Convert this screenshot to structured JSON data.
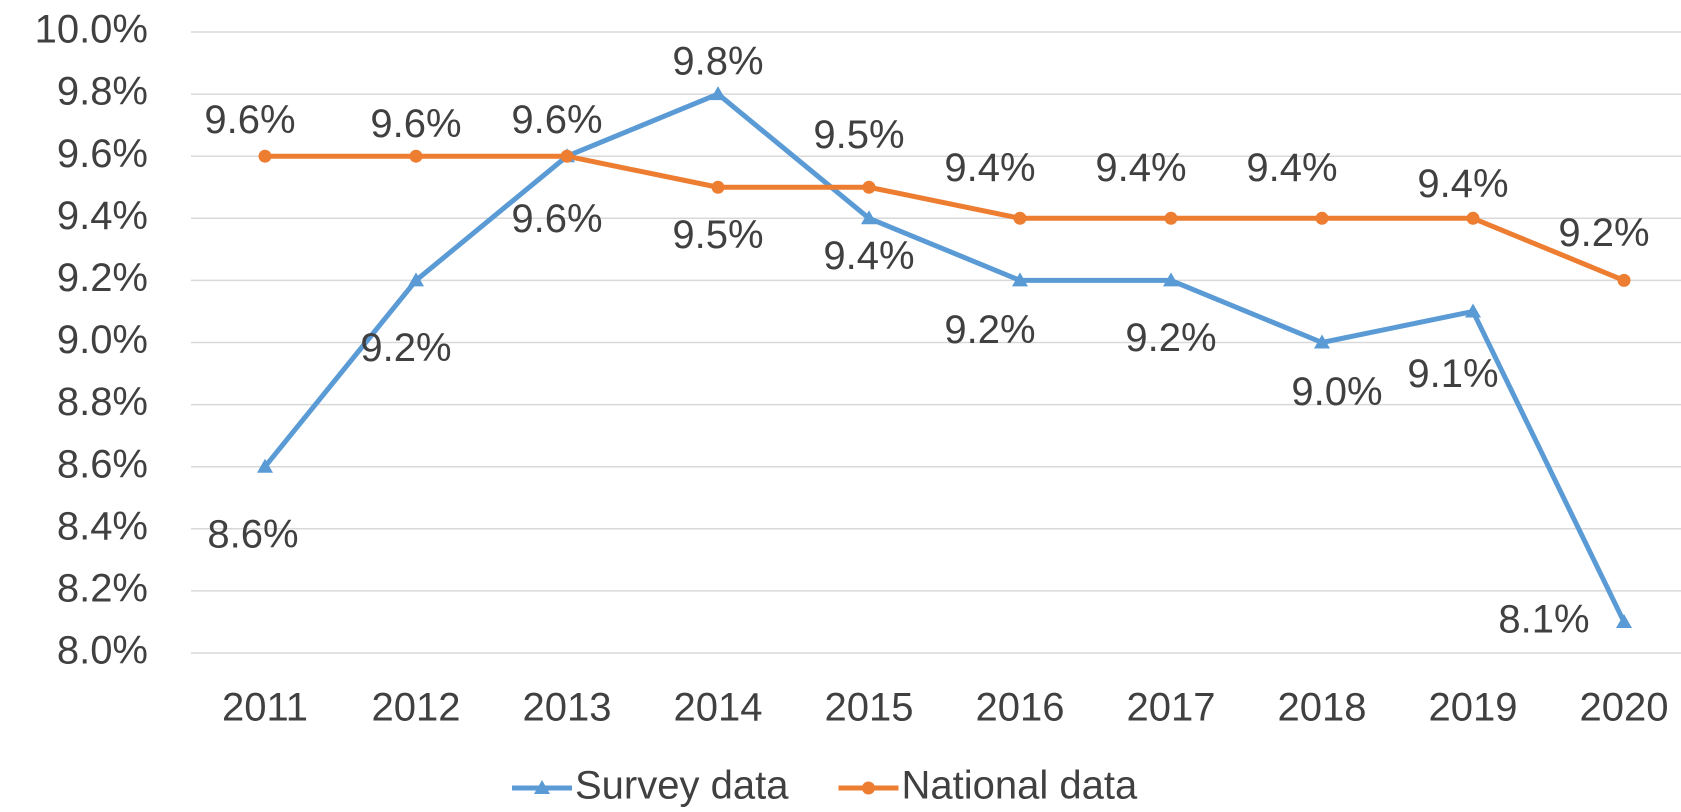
{
  "chart_data": {
    "type": "line",
    "categories": [
      "2011",
      "2012",
      "2013",
      "2014",
      "2015",
      "2016",
      "2017",
      "2018",
      "2019",
      "2020"
    ],
    "series": [
      {
        "name": "Survey data",
        "color": "#5b9bd5",
        "marker": "triangle",
        "values": [
          8.6,
          9.2,
          9.6,
          9.8,
          9.4,
          9.2,
          9.2,
          9.0,
          9.1,
          8.1
        ],
        "value_labels": [
          "8.6%",
          "9.2%",
          "9.6%",
          "9.8%",
          "9.4%",
          "9.2%",
          "9.2%",
          "9.0%",
          "9.1%",
          "8.1%"
        ]
      },
      {
        "name": "National data",
        "color": "#ed7d31",
        "marker": "circle",
        "values": [
          9.6,
          9.6,
          9.6,
          9.5,
          9.5,
          9.4,
          9.4,
          9.4,
          9.4,
          9.2
        ],
        "value_labels": [
          "9.6%",
          "9.6%",
          "9.6%",
          "9.5%",
          "9.5%",
          "9.4%",
          "9.4%",
          "9.4%",
          "9.4%",
          "9.2%"
        ]
      }
    ],
    "ylim": [
      8.0,
      10.0
    ],
    "yticks": [
      {
        "value": 8.0,
        "label": "8.0%"
      },
      {
        "value": 8.2,
        "label": "8.2%"
      },
      {
        "value": 8.4,
        "label": "8.4%"
      },
      {
        "value": 8.6,
        "label": "8.6%"
      },
      {
        "value": 8.8,
        "label": "8.8%"
      },
      {
        "value": 9.0,
        "label": "9.0%"
      },
      {
        "value": 9.2,
        "label": "9.2%"
      },
      {
        "value": 9.4,
        "label": "9.4%"
      },
      {
        "value": 9.6,
        "label": "9.6%"
      },
      {
        "value": 9.8,
        "label": "9.8%"
      },
      {
        "value": 10.0,
        "label": "10.0%"
      }
    ],
    "grid": true,
    "legend": "bottom"
  }
}
